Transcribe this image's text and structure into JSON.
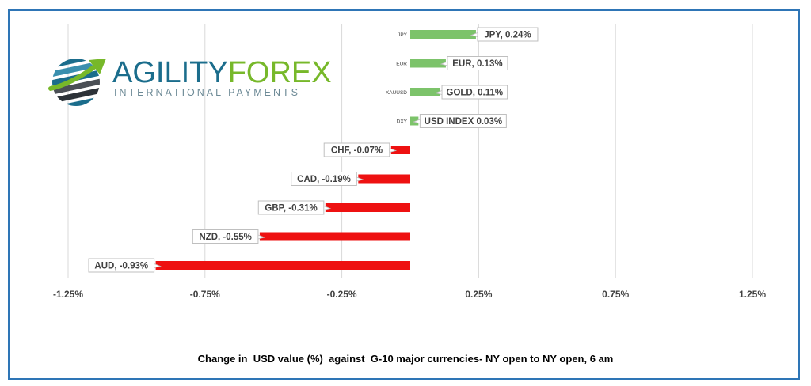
{
  "logo": {
    "word_part1": "AGILITY",
    "word_part2": "FOREX",
    "subtitle": "INTERNATIONAL PAYMENTS",
    "colors": {
      "primary": "#1b6d8c",
      "accent": "#77b82a"
    }
  },
  "caption": "Change in  USD value (%)  against  G-10 major currencies- NY open to NY open, 6 am",
  "chart_data": {
    "type": "bar",
    "orientation": "horizontal",
    "categories": [
      "JPY",
      "EUR",
      "XAUUSD",
      "DXY",
      "",
      "",
      "",
      "",
      ""
    ],
    "values": [
      0.24,
      0.13,
      0.11,
      0.03,
      -0.07,
      -0.19,
      -0.31,
      -0.55,
      -0.93
    ],
    "data_labels": [
      "JPY, 0.24%",
      "EUR, 0.13%",
      "GOLD, 0.11%",
      "USD INDEX 0.03%",
      "CHF, -0.07%",
      "CAD, -0.19%",
      "GBP, -0.31%",
      "NZD, -0.55%",
      "AUD, -0.93%"
    ],
    "x_ticks": [
      -1.25,
      -0.75,
      -0.25,
      0.25,
      0.75,
      1.25
    ],
    "x_tick_labels": [
      "-1.25%",
      "-0.75%",
      "-0.25%",
      "0.25%",
      "0.75%",
      "1.25%"
    ],
    "xlim": [
      -1.25,
      1.25
    ],
    "grid": "vertical",
    "colors": {
      "positive": "#7cc36a",
      "negative": "#ee1111",
      "gridline": "#d9d9d9"
    }
  }
}
